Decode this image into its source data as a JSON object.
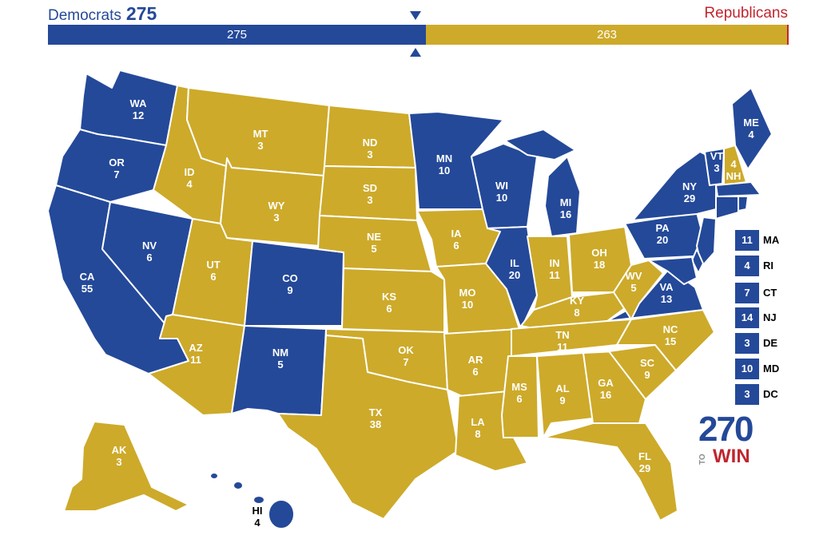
{
  "header": {
    "dem_label": "Democrats",
    "dem_total": "275",
    "rep_label": "Republicans"
  },
  "bar": {
    "dem_value": "275",
    "rep_value": "263"
  },
  "colors": {
    "democrat": "#244999",
    "republican": "#cdaa2a"
  },
  "states": {
    "WA": {
      "abbr": "WA",
      "ev": "12",
      "party": "D"
    },
    "OR": {
      "abbr": "OR",
      "ev": "7",
      "party": "D"
    },
    "CA": {
      "abbr": "CA",
      "ev": "55",
      "party": "D"
    },
    "NV": {
      "abbr": "NV",
      "ev": "6",
      "party": "D"
    },
    "ID": {
      "abbr": "ID",
      "ev": "4",
      "party": "R"
    },
    "MT": {
      "abbr": "MT",
      "ev": "3",
      "party": "R"
    },
    "WY": {
      "abbr": "WY",
      "ev": "3",
      "party": "R"
    },
    "UT": {
      "abbr": "UT",
      "ev": "6",
      "party": "R"
    },
    "AZ": {
      "abbr": "AZ",
      "ev": "11",
      "party": "R"
    },
    "CO": {
      "abbr": "CO",
      "ev": "9",
      "party": "D"
    },
    "NM": {
      "abbr": "NM",
      "ev": "5",
      "party": "D"
    },
    "ND": {
      "abbr": "ND",
      "ev": "3",
      "party": "R"
    },
    "SD": {
      "abbr": "SD",
      "ev": "3",
      "party": "R"
    },
    "NE": {
      "abbr": "NE",
      "ev": "5",
      "party": "R"
    },
    "KS": {
      "abbr": "KS",
      "ev": "6",
      "party": "R"
    },
    "OK": {
      "abbr": "OK",
      "ev": "7",
      "party": "R"
    },
    "TX": {
      "abbr": "TX",
      "ev": "38",
      "party": "R"
    },
    "MN": {
      "abbr": "MN",
      "ev": "10",
      "party": "D"
    },
    "IA": {
      "abbr": "IA",
      "ev": "6",
      "party": "R"
    },
    "MO": {
      "abbr": "MO",
      "ev": "10",
      "party": "R"
    },
    "AR": {
      "abbr": "AR",
      "ev": "6",
      "party": "R"
    },
    "LA": {
      "abbr": "LA",
      "ev": "8",
      "party": "R"
    },
    "WI": {
      "abbr": "WI",
      "ev": "10",
      "party": "D"
    },
    "IL": {
      "abbr": "IL",
      "ev": "20",
      "party": "D"
    },
    "MI": {
      "abbr": "MI",
      "ev": "16",
      "party": "D"
    },
    "IN": {
      "abbr": "IN",
      "ev": "11",
      "party": "R"
    },
    "OH": {
      "abbr": "OH",
      "ev": "18",
      "party": "R"
    },
    "KY": {
      "abbr": "KY",
      "ev": "8",
      "party": "R"
    },
    "TN": {
      "abbr": "TN",
      "ev": "11",
      "party": "R"
    },
    "MS": {
      "abbr": "MS",
      "ev": "6",
      "party": "R"
    },
    "AL": {
      "abbr": "AL",
      "ev": "9",
      "party": "R"
    },
    "GA": {
      "abbr": "GA",
      "ev": "16",
      "party": "R"
    },
    "FL": {
      "abbr": "FL",
      "ev": "29",
      "party": "R"
    },
    "SC": {
      "abbr": "SC",
      "ev": "9",
      "party": "R"
    },
    "NC": {
      "abbr": "NC",
      "ev": "15",
      "party": "R"
    },
    "VA": {
      "abbr": "VA",
      "ev": "13",
      "party": "D"
    },
    "WV": {
      "abbr": "WV",
      "ev": "5",
      "party": "R"
    },
    "PA": {
      "abbr": "PA",
      "ev": "20",
      "party": "D"
    },
    "NY": {
      "abbr": "NY",
      "ev": "29",
      "party": "D"
    },
    "VT": {
      "abbr": "VT",
      "ev": "3",
      "party": "D"
    },
    "NH": {
      "abbr": "NH",
      "ev": "4",
      "party": "R"
    },
    "ME": {
      "abbr": "ME",
      "ev": "4",
      "party": "D"
    },
    "AK": {
      "abbr": "AK",
      "ev": "3",
      "party": "R"
    },
    "HI": {
      "abbr": "HI",
      "ev": "4",
      "party": "D"
    }
  },
  "small_states": [
    {
      "abbr": "MA",
      "ev": "11",
      "party": "D"
    },
    {
      "abbr": "RI",
      "ev": "4",
      "party": "D"
    },
    {
      "abbr": "CT",
      "ev": "7",
      "party": "D"
    },
    {
      "abbr": "NJ",
      "ev": "14",
      "party": "D"
    },
    {
      "abbr": "DE",
      "ev": "3",
      "party": "D"
    },
    {
      "abbr": "MD",
      "ev": "10",
      "party": "D"
    },
    {
      "abbr": "DC",
      "ev": "3",
      "party": "D"
    }
  ],
  "logo": {
    "number": "270",
    "to": "TO",
    "win": "WIN"
  }
}
